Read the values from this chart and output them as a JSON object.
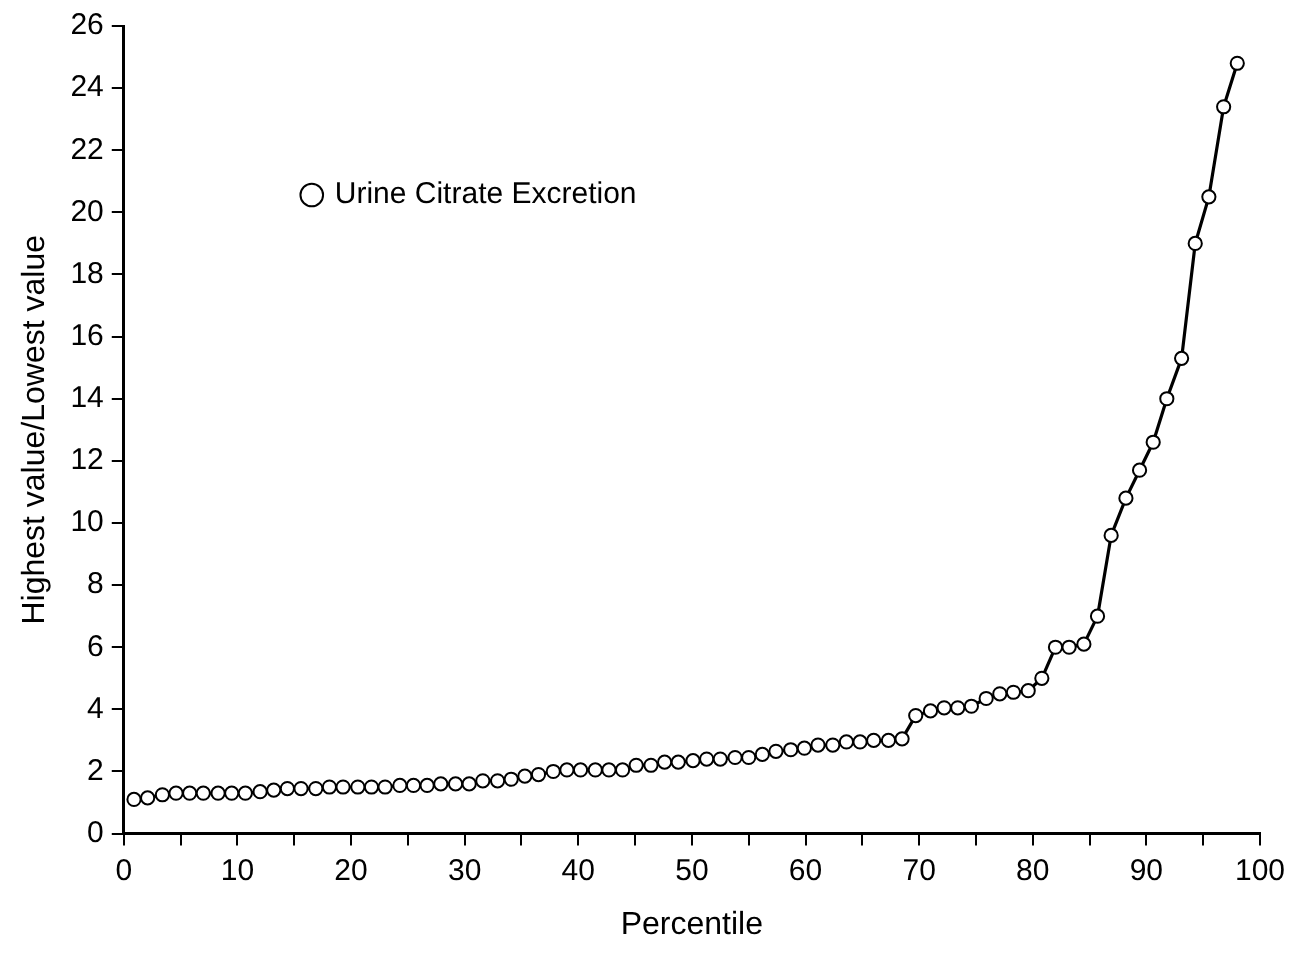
{
  "chart_data": {
    "type": "line",
    "xlabel": "Percentile",
    "ylabel": "Highest value/Lowest value",
    "xlim": [
      0,
      100
    ],
    "xticks": [
      0,
      {
        "value": 5,
        "label": null
      },
      10,
      {
        "value": 15,
        "label": null
      },
      20,
      {
        "value": 25,
        "label": null
      },
      30,
      {
        "value": 35,
        "label": null
      },
      40,
      {
        "value": 45,
        "label": null
      },
      50,
      {
        "value": 55,
        "label": null
      },
      60,
      {
        "value": 65,
        "label": null
      },
      70,
      {
        "value": 75,
        "label": null
      },
      80,
      {
        "value": 85,
        "label": null
      },
      90,
      {
        "value": 95,
        "label": null
      },
      100
    ],
    "ylim": [
      0,
      26
    ],
    "yticks": [
      0,
      2,
      4,
      6,
      8,
      10,
      12,
      14,
      16,
      18,
      20,
      22,
      24,
      26
    ],
    "grid": false,
    "legend": "top left",
    "marker": "circle",
    "line_style": "solid",
    "series": [
      {
        "name": "Urine Citrate Excretion",
        "color": "#000000",
        "x": [
          0.9,
          2.1,
          3.4,
          4.6,
          5.8,
          7.0,
          8.3,
          9.5,
          10.7,
          12.0,
          13.2,
          14.4,
          15.6,
          16.9,
          18.1,
          19.3,
          20.6,
          21.8,
          23.0,
          24.3,
          25.5,
          26.7,
          27.9,
          29.2,
          30.4,
          31.6,
          32.9,
          34.1,
          35.3,
          36.5,
          37.8,
          39.0,
          40.2,
          41.5,
          42.7,
          43.9,
          45.1,
          46.4,
          47.6,
          48.8,
          50.1,
          51.3,
          52.5,
          53.8,
          55.0,
          56.2,
          57.4,
          58.7,
          59.9,
          61.1,
          62.4,
          63.6,
          64.8,
          66.0,
          67.3,
          68.5,
          69.7,
          71.0,
          72.2,
          73.4,
          74.6,
          75.9,
          77.1,
          78.3,
          79.6,
          80.8,
          82.0,
          83.2,
          84.5,
          85.7,
          86.9,
          88.2,
          89.4,
          90.6,
          91.8,
          93.1,
          94.3,
          95.5,
          96.8,
          98.0
        ],
        "values": [
          1.1,
          1.15,
          1.25,
          1.3,
          1.3,
          1.3,
          1.3,
          1.3,
          1.3,
          1.35,
          1.4,
          1.45,
          1.45,
          1.45,
          1.5,
          1.5,
          1.5,
          1.5,
          1.5,
          1.55,
          1.55,
          1.55,
          1.6,
          1.6,
          1.6,
          1.7,
          1.7,
          1.75,
          1.85,
          1.9,
          2.0,
          2.05,
          2.05,
          2.05,
          2.05,
          2.05,
          2.2,
          2.2,
          2.3,
          2.3,
          2.35,
          2.4,
          2.4,
          2.45,
          2.45,
          2.55,
          2.65,
          2.7,
          2.75,
          2.85,
          2.85,
          2.95,
          2.95,
          3.0,
          3.0,
          3.05,
          3.8,
          3.95,
          4.05,
          4.05,
          4.1,
          4.35,
          4.5,
          4.55,
          4.6,
          5.0,
          6.0,
          6.0,
          6.1,
          7.0,
          9.6,
          10.8,
          11.7,
          12.6,
          14.0,
          15.3,
          19.0,
          20.5,
          23.4,
          24.8
        ]
      }
    ]
  }
}
